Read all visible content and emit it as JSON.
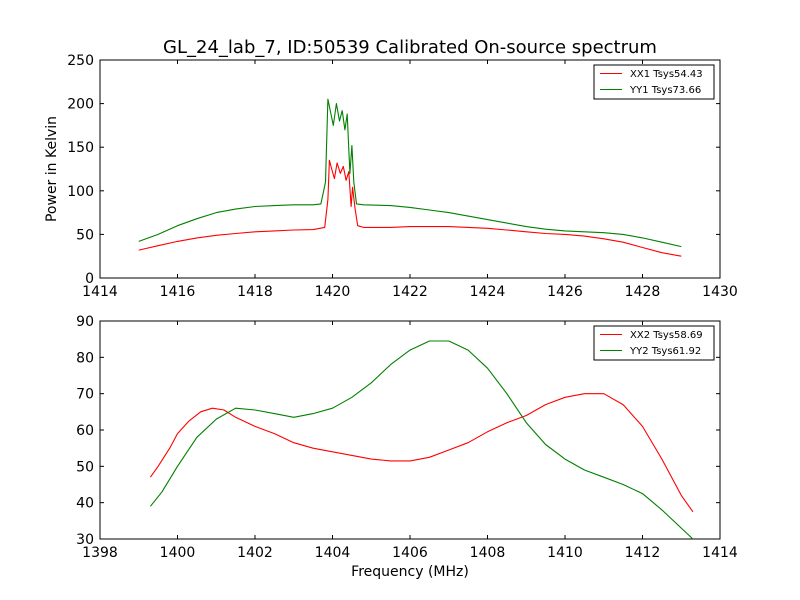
{
  "chart_data": [
    {
      "type": "line",
      "title": "GL_24_lab_7, ID:50539 Calibrated On-source spectrum",
      "xlabel": "",
      "ylabel": "Power in Kelvin",
      "xlim": [
        1414,
        1430
      ],
      "ylim": [
        0,
        250
      ],
      "xticks": [
        1414,
        1416,
        1418,
        1420,
        1422,
        1424,
        1426,
        1428,
        1430
      ],
      "yticks": [
        0,
        50,
        100,
        150,
        200,
        250
      ],
      "grid": false,
      "legend_position": "top-right",
      "series": [
        {
          "name": "XX1 Tsys54.43",
          "color": "#ff0000",
          "points": [
            [
              1415.0,
              32
            ],
            [
              1415.5,
              37
            ],
            [
              1416.0,
              42
            ],
            [
              1416.5,
              46
            ],
            [
              1417.0,
              49
            ],
            [
              1417.5,
              51
            ],
            [
              1418.0,
              53
            ],
            [
              1418.5,
              54
            ],
            [
              1419.0,
              55
            ],
            [
              1419.5,
              55.5
            ],
            [
              1419.8,
              58
            ],
            [
              1419.88,
              90
            ],
            [
              1419.92,
              135
            ],
            [
              1419.98,
              125
            ],
            [
              1420.05,
              114
            ],
            [
              1420.12,
              132
            ],
            [
              1420.2,
              120
            ],
            [
              1420.28,
              128
            ],
            [
              1420.35,
              112
            ],
            [
              1420.42,
              122
            ],
            [
              1420.48,
              82
            ],
            [
              1420.52,
              104
            ],
            [
              1420.58,
              80
            ],
            [
              1420.65,
              60
            ],
            [
              1420.8,
              58
            ],
            [
              1421.5,
              58
            ],
            [
              1422.0,
              59
            ],
            [
              1422.5,
              59
            ],
            [
              1423.0,
              59
            ],
            [
              1423.5,
              58
            ],
            [
              1424.0,
              57
            ],
            [
              1424.5,
              55
            ],
            [
              1425.0,
              53
            ],
            [
              1425.5,
              51
            ],
            [
              1426.0,
              50
            ],
            [
              1426.5,
              48
            ],
            [
              1427.0,
              45
            ],
            [
              1427.5,
              41
            ],
            [
              1428.0,
              35
            ],
            [
              1428.5,
              29
            ],
            [
              1429.0,
              25
            ]
          ]
        },
        {
          "name": "YY1 Tsys73.66",
          "color": "#008000",
          "points": [
            [
              1415.0,
              42
            ],
            [
              1415.5,
              50
            ],
            [
              1416.0,
              60
            ],
            [
              1416.5,
              68
            ],
            [
              1417.0,
              75
            ],
            [
              1417.5,
              79
            ],
            [
              1418.0,
              82
            ],
            [
              1418.5,
              83
            ],
            [
              1419.0,
              84
            ],
            [
              1419.5,
              84
            ],
            [
              1419.7,
              85
            ],
            [
              1419.82,
              110
            ],
            [
              1419.88,
              205
            ],
            [
              1419.95,
              190
            ],
            [
              1420.02,
              175
            ],
            [
              1420.1,
              200
            ],
            [
              1420.18,
              180
            ],
            [
              1420.25,
              192
            ],
            [
              1420.32,
              170
            ],
            [
              1420.38,
              188
            ],
            [
              1420.45,
              120
            ],
            [
              1420.5,
              152
            ],
            [
              1420.55,
              110
            ],
            [
              1420.62,
              85
            ],
            [
              1420.8,
              84
            ],
            [
              1421.5,
              83
            ],
            [
              1422.0,
              81
            ],
            [
              1422.5,
              78
            ],
            [
              1423.0,
              75
            ],
            [
              1423.5,
              71
            ],
            [
              1424.0,
              67
            ],
            [
              1424.5,
              63
            ],
            [
              1425.0,
              59
            ],
            [
              1425.5,
              56
            ],
            [
              1426.0,
              54
            ],
            [
              1426.5,
              53
            ],
            [
              1427.0,
              52
            ],
            [
              1427.5,
              50
            ],
            [
              1428.0,
              46
            ],
            [
              1428.5,
              41
            ],
            [
              1429.0,
              36
            ]
          ]
        }
      ]
    },
    {
      "type": "line",
      "title": "",
      "xlabel": "Frequency (MHz)",
      "ylabel": "",
      "xlim": [
        1398,
        1414
      ],
      "ylim": [
        30,
        90
      ],
      "xticks": [
        1398,
        1400,
        1402,
        1404,
        1406,
        1408,
        1410,
        1412,
        1414
      ],
      "yticks": [
        30,
        40,
        50,
        60,
        70,
        80,
        90
      ],
      "grid": false,
      "legend_position": "top-right",
      "series": [
        {
          "name": "XX2 Tsys58.69",
          "color": "#ff0000",
          "points": [
            [
              1399.3,
              47
            ],
            [
              1399.5,
              50
            ],
            [
              1399.8,
              55
            ],
            [
              1400.0,
              59
            ],
            [
              1400.3,
              62.5
            ],
            [
              1400.6,
              65
            ],
            [
              1400.9,
              66
            ],
            [
              1401.2,
              65.5
            ],
            [
              1401.5,
              63.5
            ],
            [
              1402.0,
              61
            ],
            [
              1402.5,
              59
            ],
            [
              1403.0,
              56.5
            ],
            [
              1403.5,
              55
            ],
            [
              1404.0,
              54
            ],
            [
              1404.5,
              53
            ],
            [
              1405.0,
              52
            ],
            [
              1405.5,
              51.5
            ],
            [
              1406.0,
              51.5
            ],
            [
              1406.5,
              52.5
            ],
            [
              1407.0,
              54.5
            ],
            [
              1407.5,
              56.5
            ],
            [
              1408.0,
              59.5
            ],
            [
              1408.5,
              62
            ],
            [
              1409.0,
              64
            ],
            [
              1409.5,
              67
            ],
            [
              1410.0,
              69
            ],
            [
              1410.5,
              70
            ],
            [
              1411.0,
              70
            ],
            [
              1411.5,
              67
            ],
            [
              1412.0,
              61
            ],
            [
              1412.5,
              52
            ],
            [
              1413.0,
              42
            ],
            [
              1413.3,
              37.5
            ]
          ]
        },
        {
          "name": "YY2 Tsys61.92",
          "color": "#008000",
          "points": [
            [
              1399.3,
              39
            ],
            [
              1399.6,
              43
            ],
            [
              1400.0,
              50
            ],
            [
              1400.5,
              58
            ],
            [
              1401.0,
              63
            ],
            [
              1401.5,
              66
            ],
            [
              1402.0,
              65.5
            ],
            [
              1402.5,
              64.5
            ],
            [
              1403.0,
              63.5
            ],
            [
              1403.5,
              64.5
            ],
            [
              1404.0,
              66
            ],
            [
              1404.5,
              69
            ],
            [
              1405.0,
              73
            ],
            [
              1405.5,
              78
            ],
            [
              1406.0,
              82
            ],
            [
              1406.5,
              84.5
            ],
            [
              1407.0,
              84.5
            ],
            [
              1407.5,
              82
            ],
            [
              1408.0,
              77
            ],
            [
              1408.5,
              70
            ],
            [
              1409.0,
              62
            ],
            [
              1409.5,
              56
            ],
            [
              1410.0,
              52
            ],
            [
              1410.5,
              49
            ],
            [
              1411.0,
              47
            ],
            [
              1411.5,
              45
            ],
            [
              1412.0,
              42.5
            ],
            [
              1412.5,
              38
            ],
            [
              1413.0,
              33
            ],
            [
              1413.3,
              30
            ]
          ]
        }
      ]
    }
  ]
}
